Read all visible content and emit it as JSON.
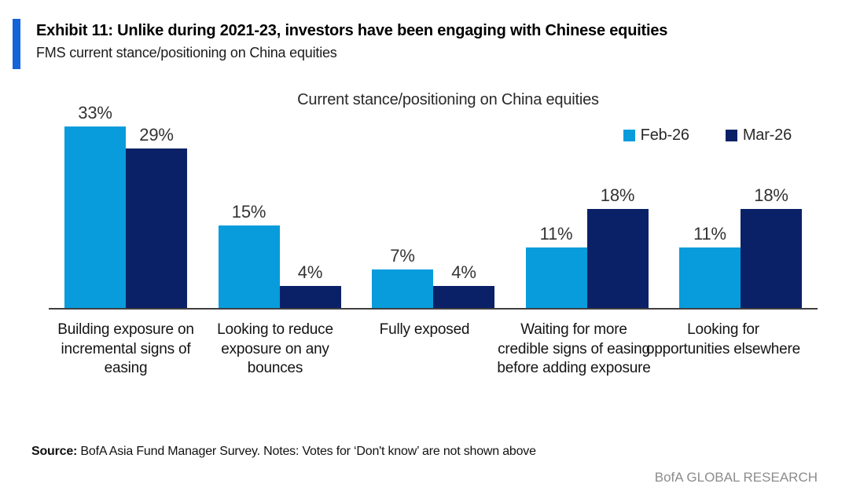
{
  "header": {
    "exhibit_title": "Exhibit 11: Unlike during 2021-23, investors have been engaging with Chinese equities",
    "subtitle": "FMS current stance/positioning on China equities"
  },
  "chart_data": {
    "type": "bar",
    "title": "Current stance/positioning on China equities",
    "categories": [
      "Building exposure on incremental signs of easing",
      "Looking to reduce exposure on any bounces",
      "Fully exposed",
      "Waiting for more credible signs of easing before adding exposure",
      "Looking for opportunities elsewhere"
    ],
    "series": [
      {
        "name": "Feb-26",
        "color": "#089CDC",
        "values": [
          33,
          15,
          7,
          11,
          11
        ]
      },
      {
        "name": "Mar-26",
        "color": "#0A2167",
        "values": [
          29,
          4,
          4,
          18,
          18
        ]
      }
    ],
    "value_suffix": "%",
    "ylim": [
      0,
      35
    ],
    "grid": false,
    "data_labels": true,
    "legend_position": "top-right",
    "axis_color": "#3F3F3F"
  },
  "footer": {
    "source_label": "Source:",
    "source_text": " BofA Asia Fund Manager Survey. Notes: Votes for ‘Don't know’ are not shown above",
    "brand": "BofA GLOBAL RESEARCH"
  },
  "colors": {
    "accent_bar": "#1563DB",
    "series_feb": "#089CDC",
    "series_mar": "#0A2167",
    "axis": "#3F3F3F",
    "brand_gray": "#8C8C8C"
  }
}
